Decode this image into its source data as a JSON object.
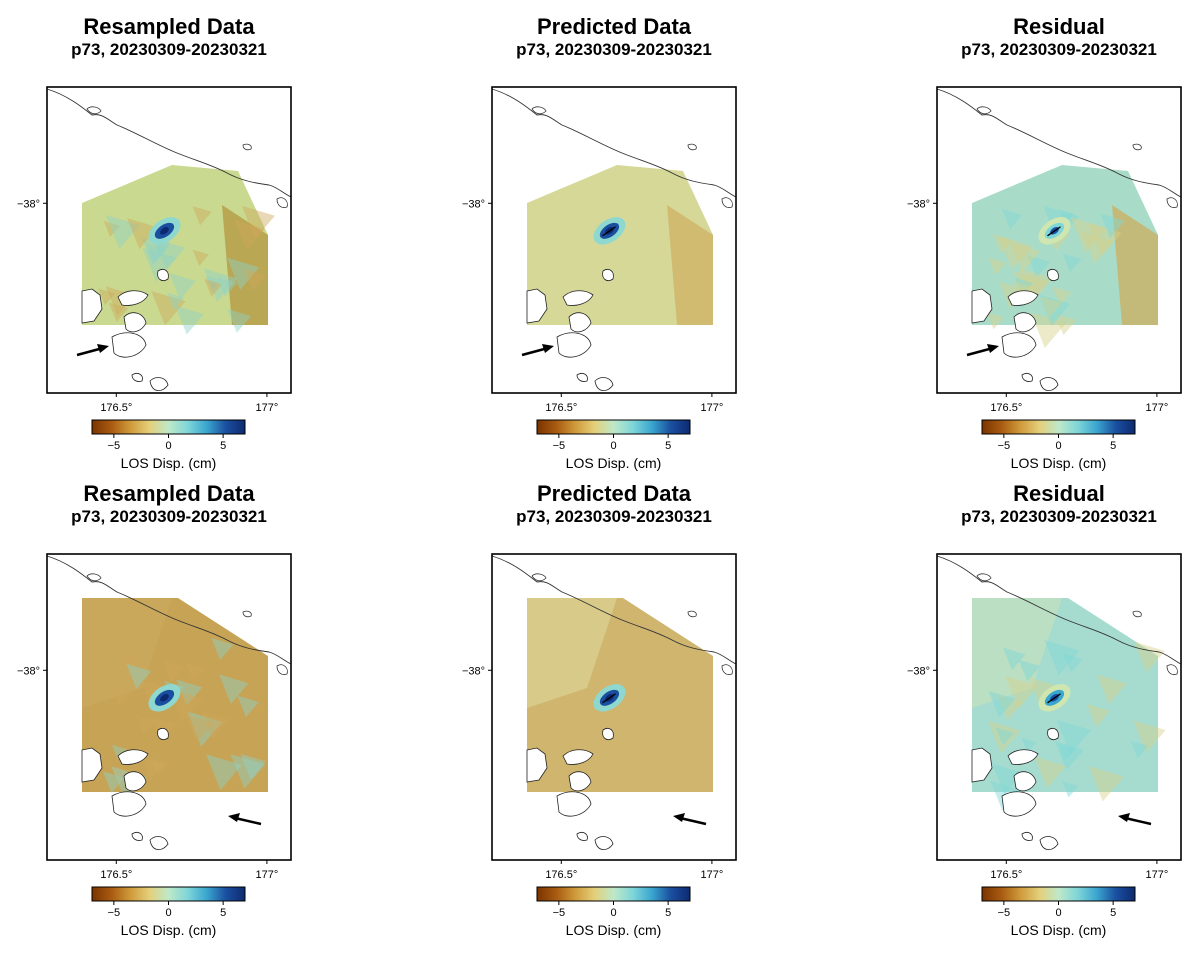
{
  "colorbar": {
    "stops": [
      "#7a3400",
      "#a85a10",
      "#cf9a3a",
      "#e4cf7a",
      "#bfe8c8",
      "#7fd6d8",
      "#3aa6cf",
      "#1a4fa0",
      "#0d2a70"
    ],
    "ticks": [
      {
        "value": -5,
        "label": "−5"
      },
      {
        "value": 0,
        "label": "0"
      },
      {
        "value": 5,
        "label": "5"
      }
    ],
    "range": [
      -7,
      7
    ],
    "label": "LOS Disp. (cm)"
  },
  "map": {
    "lon_ticks": [
      {
        "value": 176.5,
        "label": "176.5°"
      },
      {
        "value": 177.0,
        "label": "177°"
      }
    ],
    "lat_ticks": [
      {
        "value": -38.0,
        "label": "−38°"
      }
    ]
  },
  "panels": [
    {
      "title": "Resampled Data",
      "subtitle": "p73, 20230309-20230321",
      "kind": "data",
      "track": "asc",
      "base": "#c9d98f",
      "east": "#b69a44",
      "blob": "#1a4fa0"
    },
    {
      "title": "Predicted Data",
      "subtitle": "p73, 20230309-20230321",
      "kind": "model",
      "track": "asc",
      "base": "#d6d898",
      "east": "#cfb468",
      "blob": "#1a4fa0"
    },
    {
      "title": "Residual",
      "subtitle": "p73, 20230309-20230321",
      "kind": "resid",
      "track": "asc",
      "base": "#a9dcc8",
      "east": "#c9b266",
      "blob": "#7fd6d8"
    },
    {
      "title": "Resampled Data",
      "subtitle": "p73, 20230309-20230321",
      "kind": "data",
      "track": "desc",
      "base": "#c7a356",
      "east": "#c9a85c",
      "blob": "#1a4fa0"
    },
    {
      "title": "Predicted Data",
      "subtitle": "p73, 20230309-20230321",
      "kind": "model",
      "track": "desc",
      "base": "#cfb56e",
      "east": "#d9cf90",
      "blob": "#1a4fa0"
    },
    {
      "title": "Residual",
      "subtitle": "p73, 20230309-20230321",
      "kind": "resid",
      "track": "desc",
      "base": "#a6dcd0",
      "east": "#bfe0bf",
      "blob": "#3aa6cf"
    }
  ]
}
